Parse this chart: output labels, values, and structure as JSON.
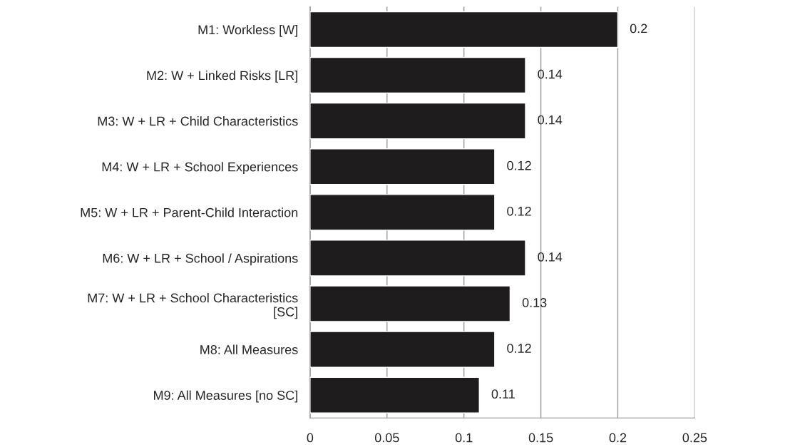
{
  "chart_data": {
    "type": "bar",
    "orientation": "horizontal",
    "categories": [
      "M1: Workless [W]",
      "M2: W + Linked Risks [LR]",
      "M3: W + LR + Child Characteristics",
      "M4: W + LR + School Experiences",
      "M5: W + LR + Parent-Child Interaction",
      "M6: W + LR + School / Aspirations",
      "M7: W + LR + School Characteristics\n[SC]",
      "M8: All Measures",
      "M9: All Measures [no SC]"
    ],
    "values": [
      0.2,
      0.14,
      0.14,
      0.12,
      0.12,
      0.14,
      0.13,
      0.12,
      0.11
    ],
    "color": "#1e1c1c",
    "xlim": [
      0,
      0.25
    ],
    "xticks": [
      0,
      0.05,
      0.1,
      0.15,
      0.2,
      0.25
    ],
    "grid": "x",
    "data_labels": true
  }
}
